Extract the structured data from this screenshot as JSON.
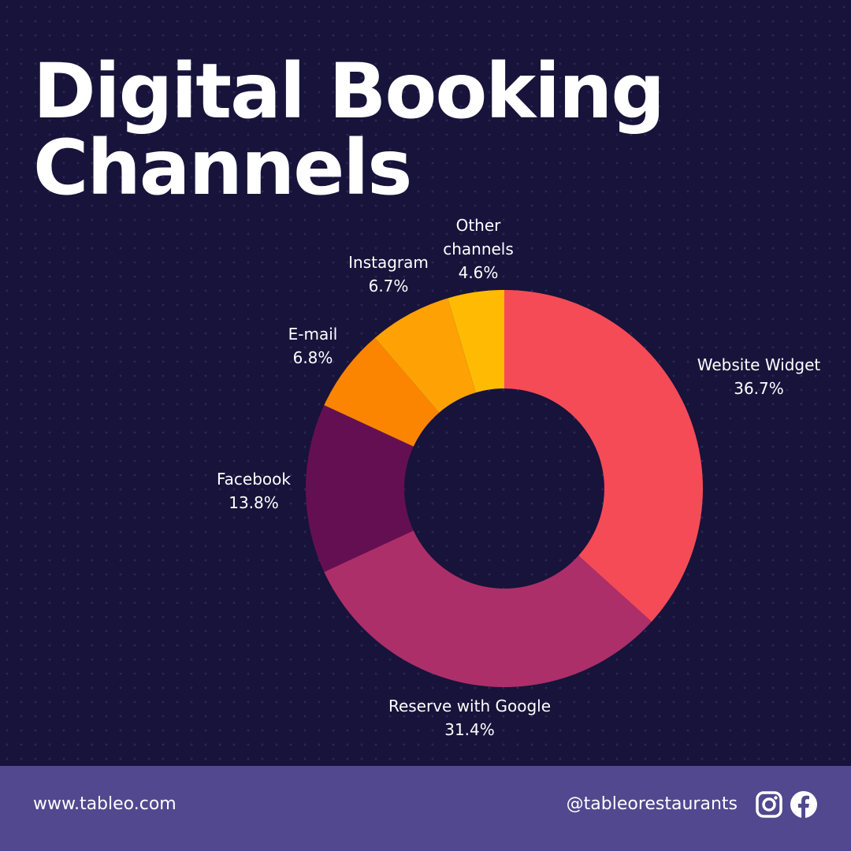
{
  "title": "Digital Booking Channels",
  "footer": {
    "website": "www.tableo.com",
    "handle": "@tableorestaurants",
    "icons": [
      "instagram-icon",
      "facebook-icon"
    ]
  },
  "colors": {
    "background": "#17133a",
    "footer": "#51488f"
  },
  "chart_data": {
    "type": "pie",
    "variant": "donut",
    "title": "Digital Booking Channels",
    "slices": [
      {
        "label": "Website Widget",
        "value": 36.7,
        "display": "36.7%",
        "color": "#f44b57"
      },
      {
        "label": "Reserve with Google",
        "value": 31.4,
        "display": "31.4%",
        "color": "#ad2f69"
      },
      {
        "label": "Facebook",
        "value": 13.8,
        "display": "13.8%",
        "color": "#650f53"
      },
      {
        "label": "E-mail",
        "value": 6.8,
        "display": "6.8%",
        "color": "#fb8500"
      },
      {
        "label": "Instagram",
        "value": 6.7,
        "display": "6.7%",
        "color": "#fda105"
      },
      {
        "label": "Other channels",
        "value": 4.6,
        "display": "4.6%",
        "color": "#ffbb04"
      }
    ]
  }
}
